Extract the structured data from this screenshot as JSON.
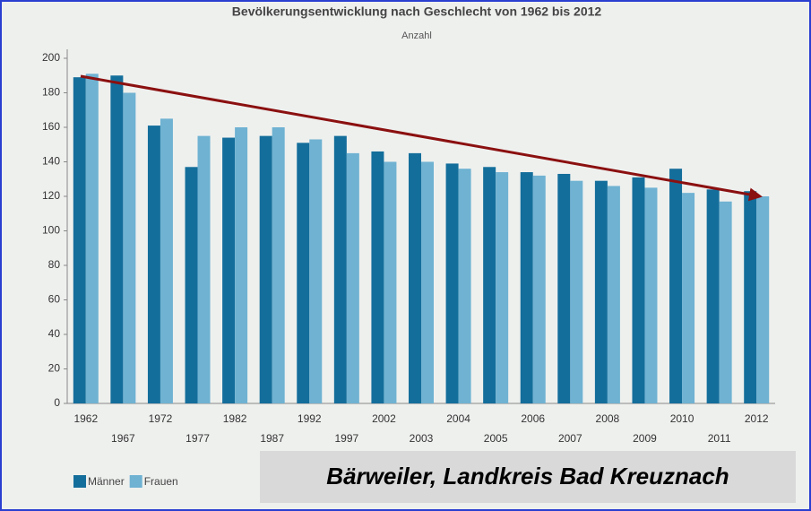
{
  "chart_data": {
    "type": "bar",
    "title": "Bevölkerungsentwicklung nach Geschlecht von 1962 bis 2012",
    "subtitle": "Anzahl",
    "annotation": "Bärweiler, Landkreis Bad Kreuznach",
    "categories": [
      "1962",
      "1967",
      "1972",
      "1977",
      "1982",
      "1987",
      "1992",
      "1997",
      "2002",
      "2003",
      "2004",
      "2005",
      "2006",
      "2007",
      "2008",
      "2009",
      "2010",
      "2011",
      "2012"
    ],
    "series": [
      {
        "name": "Männer",
        "color": "#146e9b",
        "values": [
          189,
          190,
          161,
          137,
          154,
          155,
          151,
          155,
          146,
          145,
          139,
          137,
          134,
          133,
          129,
          131,
          136,
          124,
          123
        ]
      },
      {
        "name": "Frauen",
        "color": "#6fb2d2",
        "values": [
          191,
          180,
          165,
          155,
          160,
          160,
          153,
          145,
          140,
          140,
          136,
          134,
          132,
          129,
          126,
          125,
          122,
          117,
          120
        ]
      }
    ],
    "ylim": [
      0,
      200
    ],
    "yticks": [
      0,
      20,
      40,
      60,
      80,
      100,
      120,
      140,
      160,
      180,
      200
    ],
    "grid": false,
    "legend": "bottom-left"
  }
}
